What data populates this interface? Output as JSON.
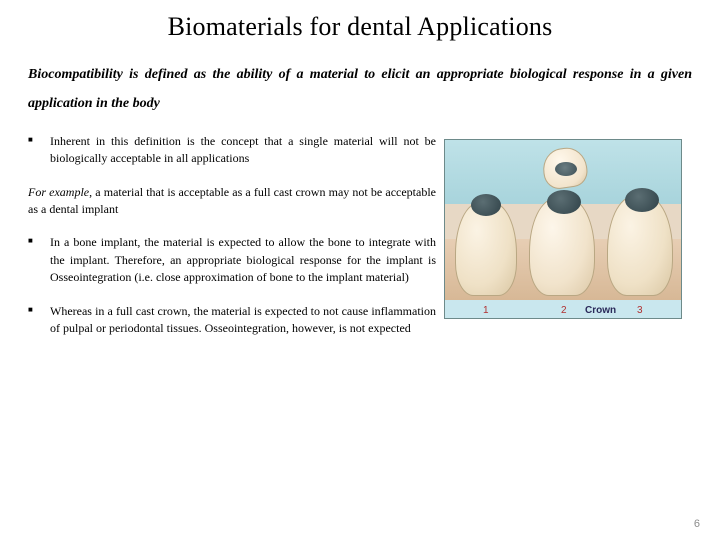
{
  "title": "Biomaterials for dental Applications",
  "definition": "Biocompatibility is defined as the ability of a material to elicit an appropriate biological response in a given application in the body",
  "bullets": {
    "b1": "Inherent in this definition is the concept that a single material will not be biologically acceptable in all applications",
    "b2": "In a bone implant, the material is expected to allow the bone to integrate with the implant. Therefore, an appropriate biological response for the implant is Osseointegration (i.e. close approximation of bone to the implant material)",
    "b3": "Whereas in a full cast crown, the material is expected to not cause inflammation of pulpal or periodontal tissues. Osseointegration, however, is not expected"
  },
  "example": {
    "lead": "For example",
    "rest": ", a material that is acceptable as a full cast crown may not         be acceptable as a dental implant"
  },
  "figure": {
    "numbers": {
      "n1": "1",
      "n2": "2",
      "n3": "3"
    },
    "label": "Crown"
  },
  "page_number": "6"
}
